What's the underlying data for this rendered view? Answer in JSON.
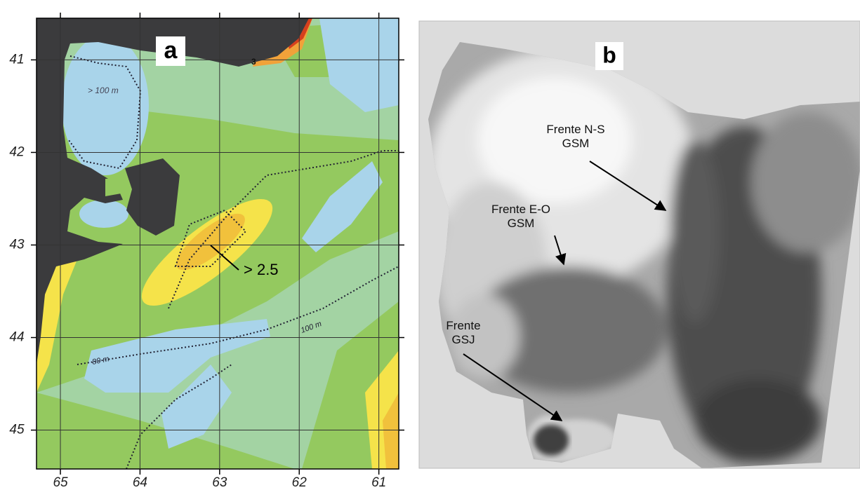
{
  "panel_a": {
    "label": "a",
    "xlim": [
      65.3,
      60.75
    ],
    "ylim": [
      40.55,
      45.42
    ],
    "xticks": [
      65,
      64,
      63,
      62,
      61
    ],
    "yticks": [
      41,
      42,
      43,
      44,
      45
    ],
    "annotations": {
      "max": "> 2.5",
      "depth_north": "> 100 m",
      "depth_100": "100 m",
      "depth_80": "80 m",
      "contour": "3"
    }
  },
  "panel_b": {
    "label": "b",
    "annotations": [
      {
        "lines": [
          "Frente N-S",
          "GSM"
        ]
      },
      {
        "lines": [
          "Frente E-O",
          "GSM"
        ]
      },
      {
        "lines": [
          "Frente",
          "GSJ"
        ]
      }
    ]
  }
}
